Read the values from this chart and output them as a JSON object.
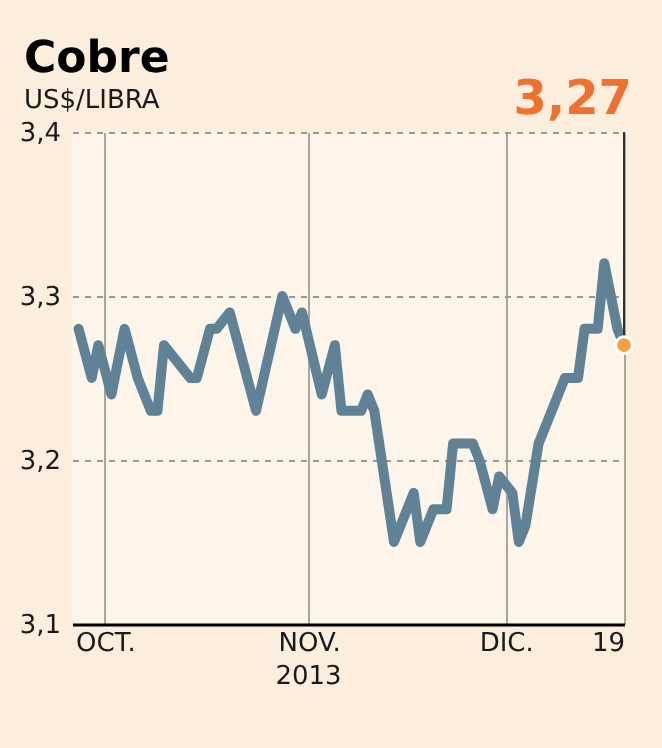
{
  "chart_data": {
    "type": "line",
    "title": "Cobre",
    "subtitle": "US$/LIBRA",
    "x": [
      "2013-09-27",
      "2013-09-29",
      "2013-09-30",
      "2013-10-02",
      "2013-10-03",
      "2013-10-04",
      "2013-10-06",
      "2013-10-08",
      "2013-10-09",
      "2013-10-10",
      "2013-10-14",
      "2013-10-15",
      "2013-10-17",
      "2013-10-18",
      "2013-10-20",
      "2013-10-24",
      "2013-10-28",
      "2013-10-30",
      "2013-10-31",
      "2013-11-03",
      "2013-11-05",
      "2013-11-06",
      "2013-11-09",
      "2013-11-10",
      "2013-11-11",
      "2013-11-14",
      "2013-11-17",
      "2013-11-18",
      "2013-11-20",
      "2013-11-22",
      "2013-11-23",
      "2013-11-26",
      "2013-11-27",
      "2013-11-29",
      "2013-11-30",
      "2013-12-02",
      "2013-12-03",
      "2013-12-04",
      "2013-12-06",
      "2013-12-08",
      "2013-12-10",
      "2013-12-12",
      "2013-12-13",
      "2013-12-15",
      "2013-12-16",
      "2013-12-17",
      "2013-12-18",
      "2013-12-19"
    ],
    "series": [
      {
        "color": "#5f8296",
        "values": [
          3.28,
          3.25,
          3.27,
          3.24,
          3.26,
          3.28,
          3.25,
          3.23,
          3.23,
          3.27,
          3.25,
          3.25,
          3.28,
          3.28,
          3.29,
          3.23,
          3.3,
          3.28,
          3.29,
          3.24,
          3.27,
          3.23,
          3.23,
          3.24,
          3.23,
          3.15,
          3.18,
          3.15,
          3.17,
          3.17,
          3.21,
          3.21,
          3.2,
          3.17,
          3.19,
          3.18,
          3.15,
          3.16,
          3.21,
          3.23,
          3.25,
          3.25,
          3.28,
          3.28,
          3.32,
          3.3,
          3.28,
          3.27
        ]
      }
    ],
    "xlim": [
      "2013-09-26",
      "2013-12-19"
    ],
    "xticks": [
      {
        "value": "2013-10-01",
        "label": "OCT."
      },
      {
        "value": "2013-11-01",
        "label": "NOV."
      },
      {
        "value": "2013-12-01",
        "label": "DIC."
      },
      {
        "value": "2013-12-19",
        "label": "19"
      }
    ],
    "ylim": [
      3.1,
      3.4
    ],
    "yticks": [
      {
        "value": 3.1,
        "label": "3,1"
      },
      {
        "value": 3.2,
        "label": "3,2"
      },
      {
        "value": 3.3,
        "label": "3,3"
      },
      {
        "value": 3.4,
        "label": "3,4"
      }
    ],
    "grid": true,
    "marker": "none",
    "line_style": "solid",
    "annotations": [
      {
        "text": "3,27",
        "x": "2013-12-19",
        "y": 3.27
      },
      "2013"
    ]
  }
}
